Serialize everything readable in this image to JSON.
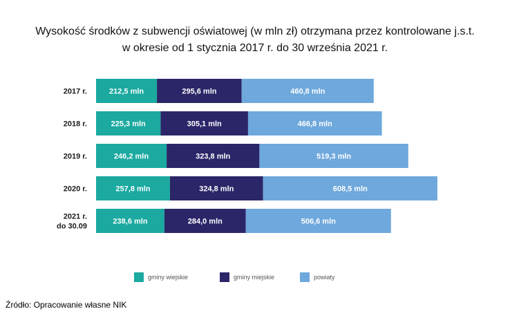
{
  "title_lines": [
    "Wysokość środków z subwencji oświatowej (w mln zł) otrzymana przez kontrolowane j.s.t.",
    "w okresie od 1 stycznia 2017 r. do 30 września 2021 r."
  ],
  "source": "Źródło: Opracowanie własne NIK",
  "colors": {
    "gminy_wiejskie": "#1ba9a0",
    "gminy_miejskie": "#2b2668",
    "powiaty": "#6ea8dc"
  },
  "chart_data": {
    "type": "bar",
    "orientation": "horizontal",
    "stacked": true,
    "categories": [
      "2017 r.",
      "2018 r.",
      "2019 r.",
      "2020 r.",
      "2021 r. do 30.09"
    ],
    "category_label_lines": [
      [
        "2017 r."
      ],
      [
        "2018 r."
      ],
      [
        "2019 r."
      ],
      [
        "2020 r."
      ],
      [
        "2021 r.",
        "do 30.09"
      ]
    ],
    "series": [
      {
        "name": "gminy wiejskie",
        "values": [
          212.5,
          225.3,
          246.2,
          257.8,
          238.6
        ],
        "labels": [
          "212,5 mln",
          "225,3 mln",
          "246,2 mln",
          "257,8 mln",
          "238,6 mln"
        ]
      },
      {
        "name": "gminy miejskie",
        "values": [
          295.6,
          305.1,
          323.8,
          324.8,
          284.0
        ],
        "labels": [
          "295,6 mln",
          "305,1 mln",
          "323,8 mln",
          "324,8 mln",
          "284,0 mln"
        ]
      },
      {
        "name": "powiaty",
        "values": [
          460.8,
          466.8,
          519.3,
          608.5,
          506.6
        ],
        "labels": [
          "460,8 mln",
          "466,8 mln",
          "519,3 mln",
          "608,5 mln",
          "506,6 mln"
        ]
      }
    ],
    "legend_position": "bottom",
    "grid": false
  }
}
